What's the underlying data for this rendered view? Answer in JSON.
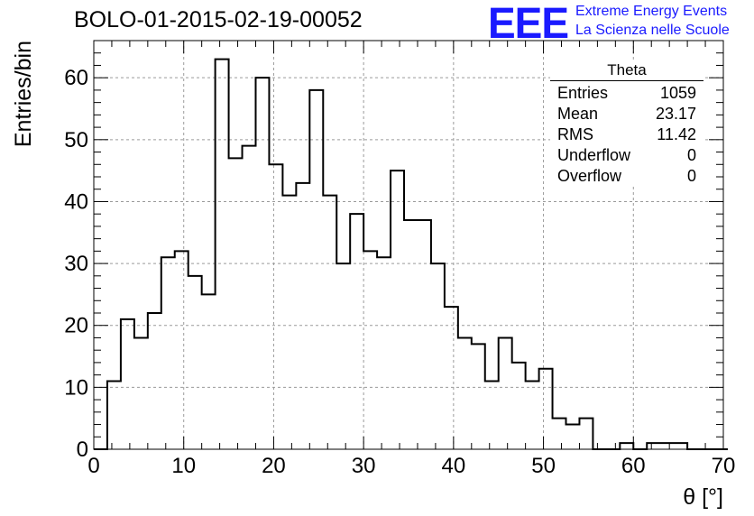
{
  "chart_data": {
    "type": "histogram",
    "title": "BOLO-01-2015-02-19-00052",
    "xlabel": "θ [°]",
    "ylabel": "Entries/bin",
    "xlim": [
      0,
      70
    ],
    "ylim": [
      0,
      66
    ],
    "xticks": [
      0,
      10,
      20,
      30,
      40,
      50,
      60,
      70
    ],
    "yticks": [
      0,
      10,
      20,
      30,
      40,
      50,
      60
    ],
    "grid": true,
    "bin_width": 1.5,
    "bin_start": 0,
    "values": [
      0,
      11,
      21,
      18,
      22,
      31,
      32,
      28,
      25,
      63,
      47,
      49,
      60,
      46,
      41,
      43,
      58,
      41,
      30,
      38,
      32,
      31,
      45,
      37,
      37,
      30,
      23,
      18,
      17,
      11,
      18,
      14,
      11,
      13,
      5,
      4,
      5,
      0,
      0,
      1,
      0,
      1,
      1,
      1,
      0,
      0,
      0
    ]
  },
  "stats_box": {
    "name": "Theta",
    "rows": [
      {
        "label": "Entries",
        "value": "1059"
      },
      {
        "label": "Mean",
        "value": "23.17"
      },
      {
        "label": "RMS",
        "value": "11.42"
      },
      {
        "label": "Underflow",
        "value": "0"
      },
      {
        "label": "Overflow",
        "value": "0"
      }
    ]
  },
  "logo": {
    "mark": "EEE",
    "line1": "Extreme Energy Events",
    "line2": "La Scienza nelle Scuole",
    "color": "#1a1aff"
  }
}
